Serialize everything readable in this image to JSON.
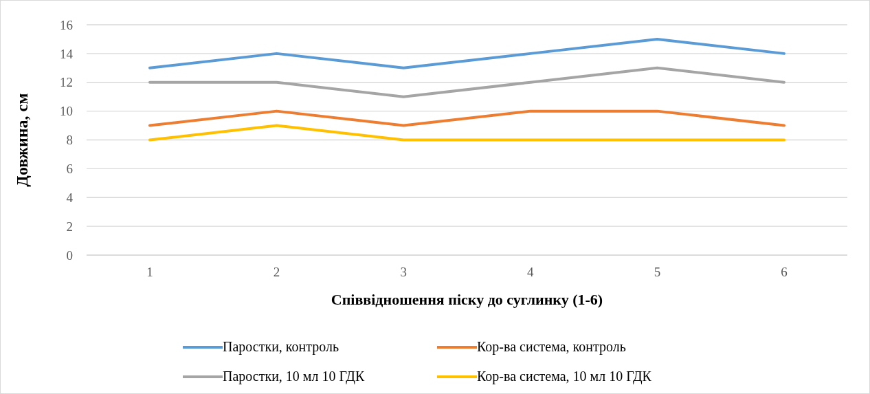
{
  "chart_data": {
    "type": "line",
    "xlabel": "Співвідношення піску до суглинку (1-6)",
    "ylabel": "Довжина, см",
    "categories": [
      "1",
      "2",
      "3",
      "4",
      "5",
      "6"
    ],
    "series": [
      {
        "name": "Паростки, контроль",
        "color": "#5b9bd5",
        "values": [
          13,
          14,
          13,
          14,
          15,
          14
        ]
      },
      {
        "name": "Кор-ва система, контроль",
        "color": "#ed7d31",
        "values": [
          9,
          10,
          9,
          10,
          10,
          9
        ]
      },
      {
        "name": "Паростки, 10 мл 10 ГДК",
        "color": "#a5a5a5",
        "values": [
          12,
          12,
          11,
          12,
          13,
          12
        ]
      },
      {
        "name": "Кор-ва система, 10 мл 10 ГДК",
        "color": "#ffc000",
        "values": [
          8,
          9,
          8,
          8,
          8,
          8
        ]
      }
    ],
    "ylim": [
      0,
      16
    ],
    "yticks": [
      0,
      2,
      4,
      6,
      8,
      10,
      12,
      14,
      16
    ],
    "grid": "y",
    "legend": "bottom",
    "marker": "none",
    "line_style": "solid"
  }
}
